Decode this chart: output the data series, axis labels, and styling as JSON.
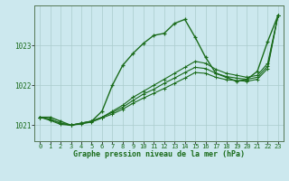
{
  "background_color": "#cce8ee",
  "grid_color": "#aacccc",
  "line_color": "#1a6b1a",
  "xlabel": "Graphe pression niveau de la mer (hPa)",
  "xlim": [
    -0.5,
    23.5
  ],
  "ylim": [
    1020.6,
    1024.0
  ],
  "yticks": [
    1021,
    1022,
    1023
  ],
  "xticks": [
    0,
    1,
    2,
    3,
    4,
    5,
    6,
    7,
    8,
    9,
    10,
    11,
    12,
    13,
    14,
    15,
    16,
    17,
    18,
    19,
    20,
    21,
    22,
    23
  ],
  "series": [
    {
      "x": [
        0,
        1,
        2,
        3,
        4,
        5,
        6,
        7,
        8,
        9,
        10,
        11,
        12,
        13,
        14,
        15,
        16,
        17,
        18,
        19,
        20,
        21,
        22,
        23
      ],
      "y": [
        1021.2,
        1021.2,
        1021.1,
        1021.0,
        1021.05,
        1021.1,
        1021.35,
        1022.0,
        1022.5,
        1022.8,
        1023.05,
        1023.25,
        1023.3,
        1023.55,
        1023.65,
        1023.2,
        1022.7,
        1022.3,
        1022.2,
        1022.1,
        1022.15,
        1022.35,
        1023.1,
        1023.75
      ]
    },
    {
      "x": [
        0,
        1,
        2,
        3,
        4,
        5,
        6,
        7,
        8,
        9,
        10,
        11,
        12,
        13,
        14,
        15,
        16,
        17,
        18,
        19,
        20,
        21,
        22,
        23
      ],
      "y": [
        1021.2,
        1021.15,
        1021.05,
        1021.0,
        1021.05,
        1021.1,
        1021.2,
        1021.35,
        1021.5,
        1021.7,
        1021.85,
        1022.0,
        1022.15,
        1022.3,
        1022.45,
        1022.6,
        1022.55,
        1022.4,
        1022.3,
        1022.25,
        1022.2,
        1022.25,
        1022.55,
        1023.75
      ]
    },
    {
      "x": [
        0,
        1,
        2,
        3,
        4,
        5,
        6,
        7,
        8,
        9,
        10,
        11,
        12,
        13,
        14,
        15,
        16,
        17,
        18,
        19,
        20,
        21,
        22,
        23
      ],
      "y": [
        1021.2,
        1021.15,
        1021.05,
        1021.0,
        1021.05,
        1021.1,
        1021.2,
        1021.32,
        1021.45,
        1021.62,
        1021.78,
        1021.9,
        1022.05,
        1022.18,
        1022.32,
        1022.45,
        1022.42,
        1022.3,
        1022.22,
        1022.18,
        1022.15,
        1022.2,
        1022.48,
        1023.75
      ]
    },
    {
      "x": [
        0,
        1,
        2,
        3,
        4,
        5,
        6,
        7,
        8,
        9,
        10,
        11,
        12,
        13,
        14,
        15,
        16,
        17,
        18,
        19,
        20,
        21,
        22,
        23
      ],
      "y": [
        1021.2,
        1021.12,
        1021.02,
        1021.0,
        1021.03,
        1021.08,
        1021.18,
        1021.28,
        1021.4,
        1021.55,
        1021.68,
        1021.8,
        1021.92,
        1022.05,
        1022.18,
        1022.32,
        1022.3,
        1022.2,
        1022.14,
        1022.12,
        1022.1,
        1022.15,
        1022.42,
        1023.75
      ]
    }
  ]
}
